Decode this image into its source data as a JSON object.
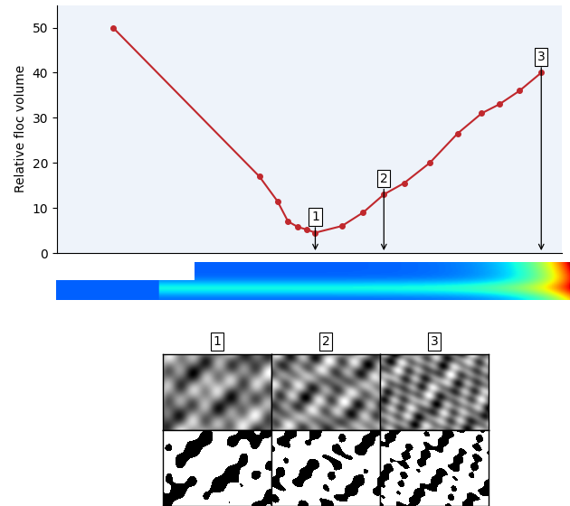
{
  "chart_data": {
    "type": "line",
    "y_label": "Relative floc volume",
    "x": [
      11.1,
      40.1,
      43.7,
      45.8,
      47.7,
      49.5,
      51.2,
      56.5,
      60.7,
      64.8,
      68.8,
      73.9,
      79.4,
      84.2,
      87.7,
      91.7,
      96.0
    ],
    "values": [
      50,
      17,
      11.5,
      7,
      5.8,
      5.2,
      4.5,
      6,
      9,
      13,
      15.5,
      20,
      26.5,
      31,
      33,
      36,
      40
    ],
    "color": "#c0282d",
    "marker": "circle",
    "line_style": "solid",
    "xlim": [
      0,
      100
    ],
    "ylim": [
      0,
      55
    ],
    "yticks": [
      0,
      10,
      20,
      30,
      40,
      50
    ],
    "tick_labels": "y",
    "grid": false,
    "annotations": [
      {
        "text": "1",
        "x": 51.2
      },
      {
        "text": "2",
        "x": 64.8
      },
      {
        "text": "3",
        "x": 96.0
      }
    ],
    "image_labels": [
      "1",
      "2",
      "3"
    ]
  }
}
